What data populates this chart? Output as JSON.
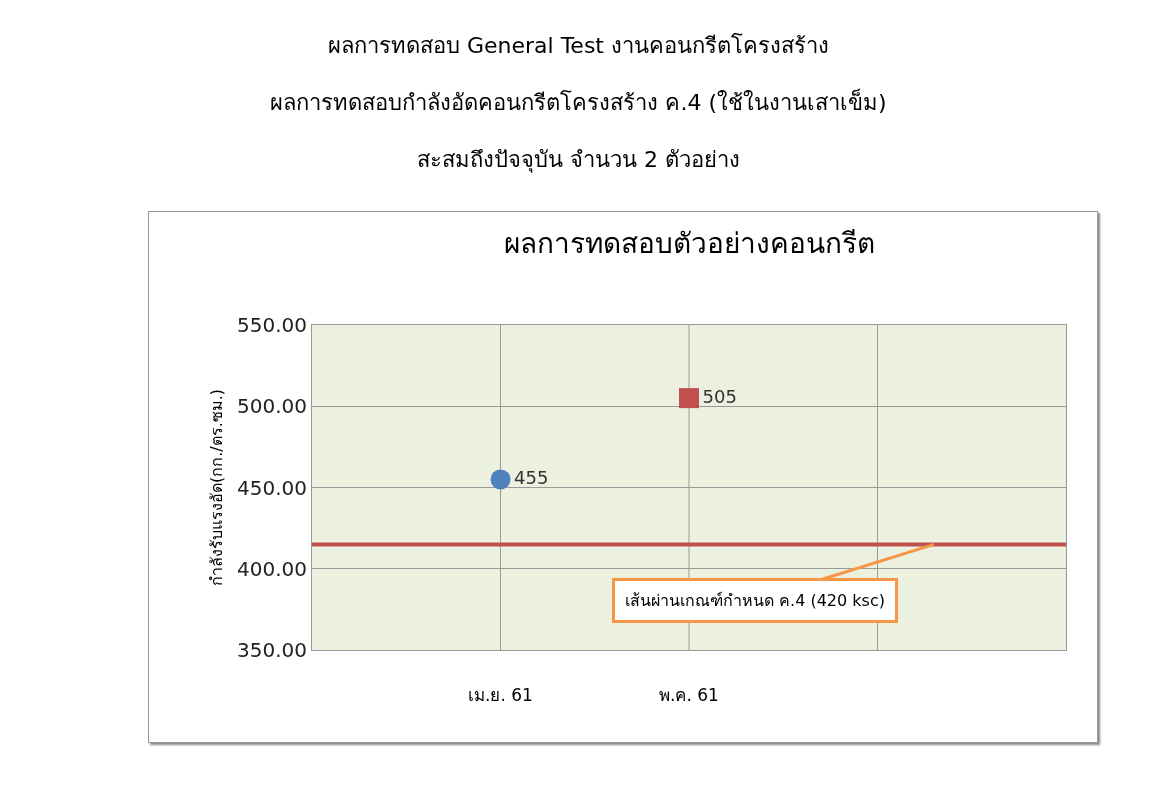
{
  "chart_data": {
    "type": "scatter",
    "title": "ผลการทดสอบ General Test งานคอนกรีตโครงสร้าง",
    "subtitle": "ผลการทดสอบกำลังอัดคอนกรีตโครงสร้าง ค.4 (ใช้ในงานเสาเข็ม)\nสะสมถึงปัจจุบัน จำนวน 2 ตัวอย่าง",
    "annotations": [
      "ผลการทดสอบตัวอย่างคอนกรีต"
    ],
    "ylabel": "กำลังรับแรงอัด(กก./ตร.ซม.)",
    "categories": [
      null,
      "เม.ย. 61",
      "พ.ค. 61",
      null,
      null
    ],
    "series": [
      {
        "color": "#4f81bd",
        "marker": "circle",
        "values": [
          null,
          455,
          null,
          null,
          null
        ],
        "value_labels": [
          null,
          "455",
          null,
          null,
          null
        ]
      },
      {
        "color": "#c0504d",
        "marker": "square",
        "values": [
          null,
          null,
          505,
          null,
          null
        ],
        "value_labels": [
          null,
          null,
          "505",
          null,
          null
        ]
      }
    ],
    "ylim": [
      350,
      550
    ],
    "yticks": [
      {
        "value": 350,
        "label": "350.00"
      },
      {
        "value": 400,
        "label": "400.00"
      },
      {
        "value": 450,
        "label": "450.00"
      },
      {
        "value": 500,
        "label": "500.00"
      },
      {
        "value": 550,
        "label": "550.00"
      }
    ],
    "ref_lines": [
      {
        "axis": "y",
        "value": 415,
        "label": "เส้นผ่านเกณฑ์กำหนด ค.4 (420 ksc)",
        "color": "#c0504d"
      }
    ],
    "grid": true
  }
}
